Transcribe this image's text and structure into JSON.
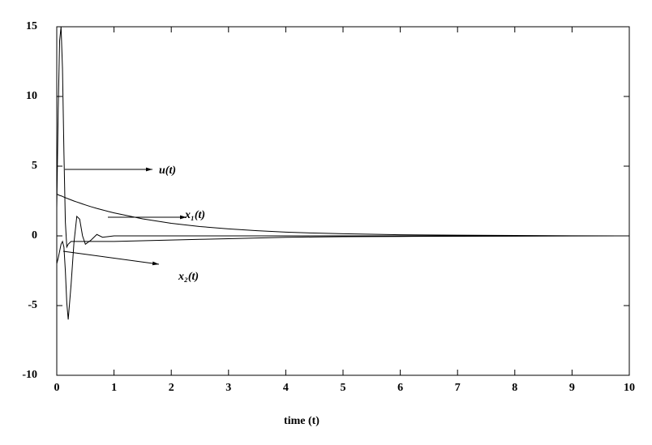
{
  "chart_data": {
    "type": "line",
    "xlabel": "time (t)",
    "x": [
      0,
      0.025,
      0.05,
      0.075,
      0.1,
      0.125,
      0.15,
      0.175,
      0.2,
      0.25,
      0.3,
      0.35,
      0.4,
      0.45,
      0.5,
      0.6,
      0.7,
      0.8,
      0.9,
      1,
      1.5,
      2,
      2.5,
      3,
      3.5,
      4,
      4.5,
      5,
      6,
      7,
      8,
      9,
      10
    ],
    "series": [
      {
        "name": "u(t)",
        "color": "#000000",
        "values": [
          2,
          9,
          14,
          15,
          12,
          6,
          1,
          -0.8,
          -0.6,
          -0.4,
          -0.4,
          -0.4,
          -0.4,
          -0.4,
          -0.4,
          -0.4,
          -0.4,
          -0.4,
          -0.4,
          -0.4,
          -0.35,
          -0.3,
          -0.25,
          -0.2,
          -0.15,
          -0.1,
          -0.08,
          -0.06,
          -0.04,
          -0.03,
          -0.02,
          -0.01,
          0
        ]
      },
      {
        "name": "x₁(t)",
        "color": "#000000",
        "values": [
          3,
          2.95,
          2.9,
          2.87,
          2.83,
          2.78,
          2.74,
          2.7,
          2.66,
          2.58,
          2.5,
          2.43,
          2.36,
          2.29,
          2.22,
          2.09,
          1.97,
          1.86,
          1.75,
          1.65,
          1.22,
          0.9,
          0.67,
          0.5,
          0.37,
          0.27,
          0.2,
          0.15,
          0.08,
          0.05,
          0.03,
          0.01,
          0
        ]
      },
      {
        "name": "x₂(t)",
        "color": "#000000",
        "values": [
          -2,
          -1.6,
          -1.1,
          -0.6,
          -0.4,
          -0.8,
          -2.5,
          -4.8,
          -6,
          -3.5,
          -0.5,
          1.4,
          1.2,
          0,
          -0.6,
          -0.3,
          0.1,
          -0.1,
          -0.05,
          0,
          0,
          0,
          0,
          0,
          0,
          0,
          0,
          0,
          0,
          0,
          0,
          0,
          0
        ]
      }
    ],
    "xlim": [
      0,
      10
    ],
    "xticks": [
      0,
      1,
      2,
      3,
      4,
      5,
      6,
      7,
      8,
      9,
      10
    ],
    "ylim": [
      -10,
      15
    ],
    "yticks": [
      -10,
      -5,
      0,
      5,
      10,
      15
    ]
  }
}
